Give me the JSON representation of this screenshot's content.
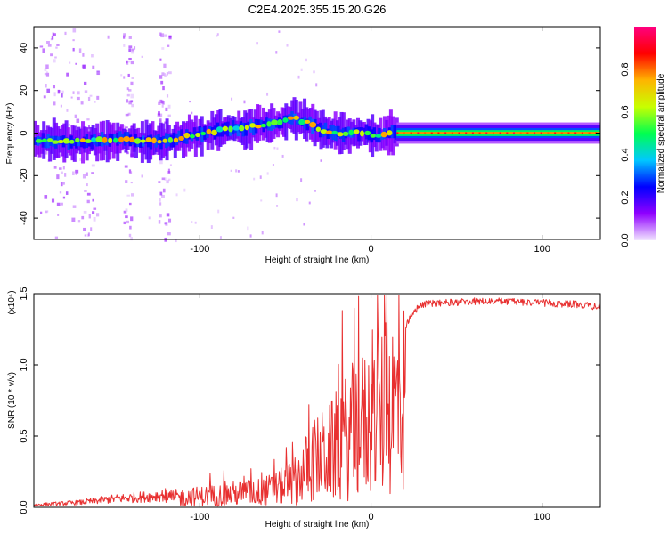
{
  "chart_data": [
    {
      "type": "heatmap",
      "title": "C2E4.2025.355.15.20.G26",
      "xlabel": "Height of straight line (km)",
      "ylabel": "Frequency (Hz)",
      "xlim": [
        -197,
        134
      ],
      "ylim": [
        -50,
        50
      ],
      "xticks": [
        -100,
        0,
        100
      ],
      "yticks": [
        -40,
        -20,
        0,
        20,
        40
      ],
      "colorbar": {
        "label": "Normalized spectral amplitude",
        "range": [
          0,
          1
        ],
        "ticks": [
          "0.0",
          "0.2",
          "0.4",
          "0.6",
          "0.8"
        ],
        "tick_values": [
          0.0,
          0.2,
          0.4,
          0.6,
          0.8
        ],
        "colormap": [
          "#f2e6ff",
          "#9000ff",
          "#0000ff",
          "#00c8ff",
          "#00ff50",
          "#c8ff00",
          "#ffb400",
          "#ff0000",
          "#ff0080"
        ]
      },
      "ridge": {
        "x": [
          -197,
          -170,
          -150,
          -120,
          -100,
          -80,
          -60,
          -45,
          -35,
          -25,
          -15,
          -5,
          0,
          5,
          10,
          15,
          134
        ],
        "freq_hz": [
          -4,
          -4,
          -3,
          -4,
          0,
          2,
          4,
          7,
          4,
          0,
          0,
          0,
          -1,
          -2,
          0,
          0,
          0
        ]
      }
    },
    {
      "type": "line",
      "title": "",
      "xlabel": "Height of straight line (km)",
      "ylabel": "SNR (10 * v/v)",
      "multiplier": "(x10⁴)",
      "xlim": [
        -197,
        134
      ],
      "ylim": [
        0,
        1.5
      ],
      "xticks": [
        -100,
        0,
        100
      ],
      "yticks": [
        0.0,
        0.5,
        1.0,
        1.5
      ],
      "ytick_labels": [
        "0.0",
        "0.5",
        "1.0",
        "1.5"
      ],
      "color": "#e83030",
      "envelope": {
        "x": [
          -197,
          -170,
          -150,
          -130,
          -115,
          -100,
          -90,
          -80,
          -65,
          -55,
          -45,
          -38,
          -33,
          -28,
          -25,
          -20,
          -15,
          -10,
          -5,
          0,
          5,
          10,
          15,
          20,
          25,
          30,
          40,
          60,
          80,
          100,
          120,
          134
        ],
        "snr": [
          0.02,
          0.04,
          0.07,
          0.09,
          0.11,
          0.13,
          0.14,
          0.16,
          0.18,
          0.22,
          0.3,
          0.45,
          0.55,
          0.6,
          0.62,
          0.72,
          0.8,
          0.9,
          0.95,
          1.0,
          1.08,
          1.15,
          1.22,
          1.3,
          1.4,
          1.45,
          1.46,
          1.47,
          1.47,
          1.46,
          1.45,
          1.43
        ]
      }
    }
  ]
}
